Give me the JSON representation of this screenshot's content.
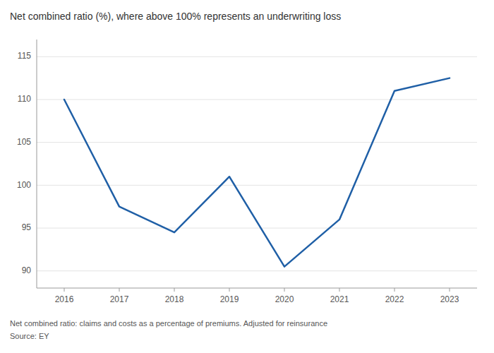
{
  "chart_data": {
    "type": "line",
    "title": "Net combined ratio (%), where above 100% represents an underwriting loss",
    "annotations": [
      "Net combined ratio: claims and costs as a percentage of premiums. Adjusted for reinsurance",
      "Source: EY"
    ],
    "x": [
      2016,
      2017,
      2018,
      2019,
      2020,
      2021,
      2022,
      2023
    ],
    "values": [
      110.0,
      97.5,
      94.5,
      101.0,
      90.5,
      96.0,
      111.0,
      112.5
    ],
    "color": "#1f5fa6",
    "xlim": [
      2015.5,
      2023.5
    ],
    "xticks": [
      2016,
      2017,
      2018,
      2019,
      2020,
      2021,
      2022,
      2023
    ],
    "ylim": [
      88,
      117
    ],
    "yticks": [
      90,
      95,
      100,
      105,
      110,
      115
    ],
    "grid": true
  }
}
